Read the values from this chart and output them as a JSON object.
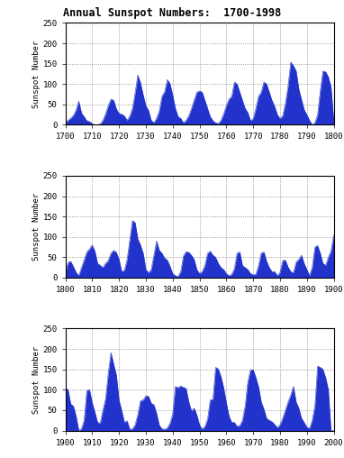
{
  "title": "Annual Sunspot Numbers:  1700-1998",
  "ylabel": "Sunspot Number",
  "fill_color": "#2233CC",
  "ylim": [
    0,
    250
  ],
  "yticks": [
    0,
    50,
    100,
    150,
    200,
    250
  ],
  "panels": [
    {
      "xmin": 1700,
      "xmax": 1800,
      "xtick_step": 10
    },
    {
      "xmin": 1800,
      "xmax": 1900,
      "xtick_step": 10
    },
    {
      "xmin": 1900,
      "xmax": 2000,
      "xtick_step": 10
    }
  ],
  "sunspots": [
    5,
    11,
    16,
    23,
    36,
    58,
    29,
    20,
    10,
    8,
    3,
    0,
    0,
    2,
    11,
    27,
    47,
    63,
    60,
    39,
    28,
    26,
    22,
    11,
    21,
    40,
    78,
    122,
    103,
    73,
    47,
    35,
    11,
    5,
    16,
    34,
    70,
    81,
    111,
    101,
    73,
    40,
    20,
    16,
    5,
    11,
    22,
    40,
    60,
    80,
    83,
    80,
    60,
    40,
    20,
    10,
    5,
    3,
    11,
    27,
    47,
    63,
    70,
    105,
    100,
    80,
    60,
    40,
    30,
    10,
    15,
    40,
    70,
    80,
    105,
    100,
    80,
    60,
    45,
    25,
    15,
    22,
    52,
    95,
    154,
    145,
    132,
    88,
    62,
    37,
    25,
    11,
    0,
    5,
    24,
    83,
    132,
    130,
    118,
    93,
    12,
    37,
    40,
    27,
    13,
    5,
    25,
    43,
    63,
    70,
    80,
    65,
    35,
    30,
    25,
    35,
    42,
    60,
    67,
    62,
    45,
    15,
    18,
    44,
    92,
    140,
    135,
    95,
    80,
    60,
    20,
    12,
    20,
    55,
    90,
    67,
    60,
    48,
    43,
    28,
    10,
    5,
    3,
    15,
    53,
    64,
    62,
    55,
    45,
    20,
    10,
    15,
    30,
    60,
    65,
    55,
    50,
    35,
    25,
    20,
    10,
    5,
    8,
    22,
    60,
    63,
    30,
    25,
    20,
    10,
    7,
    8,
    30,
    60,
    63,
    40,
    25,
    15,
    15,
    5,
    13,
    42,
    43,
    26,
    15,
    12,
    38,
    45,
    55,
    35,
    20,
    5,
    25,
    75,
    79,
    60,
    35,
    30,
    50,
    65,
    105,
    100,
    65,
    60,
    35,
    0,
    4,
    25,
    98,
    100,
    68,
    45,
    20,
    18,
    50,
    78,
    141,
    191,
    163,
    136,
    74,
    49,
    20,
    24,
    3,
    4,
    14,
    39,
    73,
    75,
    85,
    84,
    67,
    63,
    42,
    13,
    4,
    3,
    6,
    18,
    40,
    108,
    105,
    109,
    106,
    103,
    70,
    48,
    55,
    38,
    14,
    3,
    10,
    28,
    75,
    76,
    155,
    151,
    132,
    105,
    68,
    35,
    20,
    20,
    10,
    12,
    25,
    60,
    119,
    149,
    149,
    130,
    107,
    70,
    52,
    30,
    25,
    22,
    15,
    7,
    14,
    30,
    50,
    70,
    87,
    108,
    70,
    55,
    30,
    20,
    8,
    5,
    25,
    60,
    158,
    155,
    150,
    130,
    100
  ]
}
